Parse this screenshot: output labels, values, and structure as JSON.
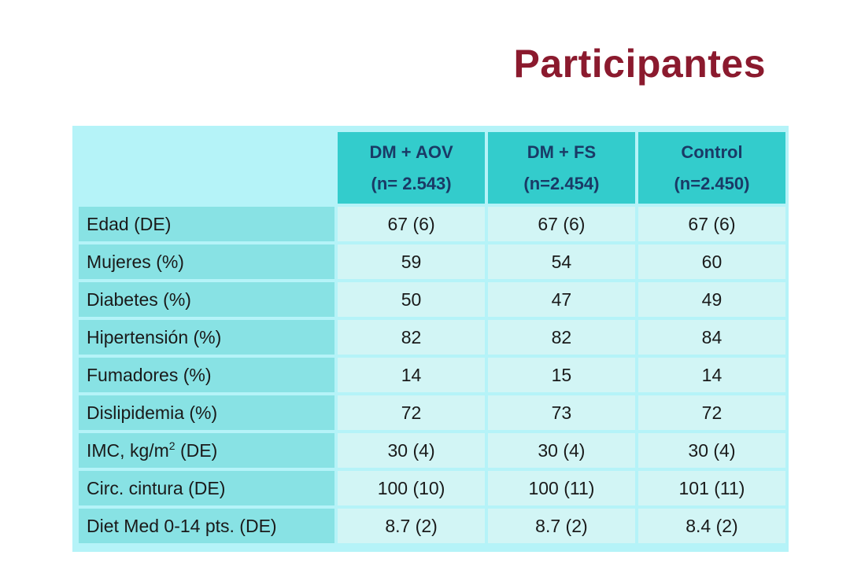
{
  "title": "Participantes",
  "table": {
    "columns": [
      {
        "name": "DM + AOV",
        "n": "(n= 2.543)"
      },
      {
        "name": "DM + FS",
        "n": "(n=2.454)"
      },
      {
        "name": "Control",
        "n": "(n=2.450)"
      }
    ],
    "rows": [
      {
        "label": "Edad (DE)",
        "values": [
          "67 (6)",
          "67 (6)",
          "67 (6)"
        ]
      },
      {
        "label": "Mujeres (%)",
        "values": [
          "59",
          "54",
          "60"
        ]
      },
      {
        "label": "Diabetes (%)",
        "values": [
          "50",
          "47",
          "49"
        ]
      },
      {
        "label": "Hipertensión (%)",
        "values": [
          "82",
          "82",
          "84"
        ]
      },
      {
        "label": "Fumadores (%)",
        "values": [
          "14",
          "15",
          "14"
        ]
      },
      {
        "label": "Dislipidemia (%)",
        "values": [
          "72",
          "73",
          "72"
        ]
      },
      {
        "label_prefix": "IMC, kg/m",
        "label_sup": "2",
        "label_suffix": " (DE)",
        "values": [
          "30 (4)",
          "30 (4)",
          "30 (4)"
        ]
      },
      {
        "label": "Circ. cintura (DE)",
        "values": [
          "100 (10)",
          "100 (11)",
          "101 (11)"
        ]
      },
      {
        "label": "Diet Med 0-14 pts. (DE)",
        "values": [
          "8.7 (2)",
          "8.7 (2)",
          "8.4 (2)"
        ]
      }
    ]
  }
}
